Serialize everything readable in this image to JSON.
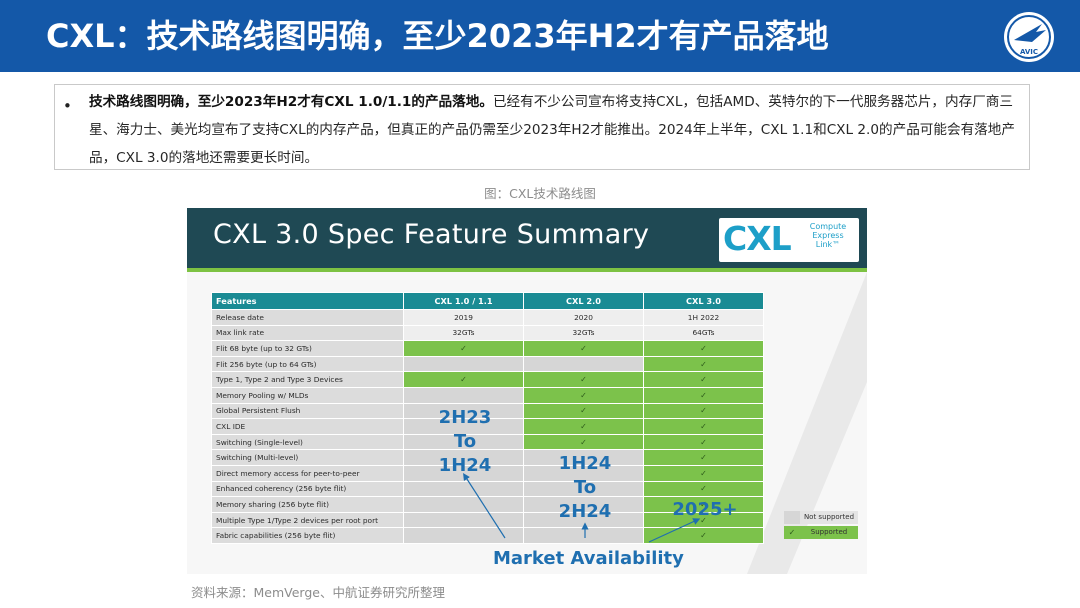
{
  "header": {
    "title": "CXL：技术路线图明确，至少2023年H2才有产品落地",
    "logo_text": "AVIC",
    "band_color": "#1458a8"
  },
  "summary": {
    "bullet": "•",
    "lead": "技术路线图明确，至少2023年H2才有CXL 1.0/1.1的产品落地。",
    "body": "已经有不少公司宣布将支持CXL，包括AMD、英特尔的下一代服务器芯片，内存厂商三星、海力士、美光均宣布了支持CXL的内存产品，但真正的产品仍需至少2023年H2才能推出。2024年上半年，CXL 1.1和CXL 2.0的产品可能会有落地产品，CXL 3.0的落地还需要更长时间。"
  },
  "figure_caption": "图：CXL技术路线图",
  "slide": {
    "title": "CXL 3.0 Spec Feature Summary",
    "logo_word": "CXL",
    "logo_sub": [
      "Compute",
      "Express",
      "Link™"
    ],
    "colors": {
      "header": "#1f4954",
      "supported": "#7cc24b",
      "not_supported": "#d6d6d6",
      "table_head": "#1a8b94"
    },
    "table": {
      "columns": [
        "Features",
        "CXL 1.0 / 1.1",
        "CXL 2.0",
        "CXL 3.0"
      ],
      "rows": [
        {
          "feature": "Release date",
          "cells": [
            "2019",
            "2020",
            "1H 2022"
          ]
        },
        {
          "feature": "Max link rate",
          "cells": [
            "32GTs",
            "32GTs",
            "64GTs"
          ]
        },
        {
          "feature": "Flit 68 byte (up to 32 GTs)",
          "cells": [
            "✓",
            "✓",
            "✓"
          ]
        },
        {
          "feature": "Flit 256 byte (up to 64 GTs)",
          "cells": [
            "",
            "",
            "✓"
          ]
        },
        {
          "feature": "Type 1, Type 2 and Type 3 Devices",
          "cells": [
            "✓",
            "✓",
            "✓"
          ]
        },
        {
          "feature": "Memory Pooling w/ MLDs",
          "cells": [
            "",
            "✓",
            "✓"
          ]
        },
        {
          "feature": "Global Persistent Flush",
          "cells": [
            "",
            "✓",
            "✓"
          ]
        },
        {
          "feature": "CXL IDE",
          "cells": [
            "",
            "✓",
            "✓"
          ]
        },
        {
          "feature": "Switching (Single-level)",
          "cells": [
            "",
            "✓",
            "✓"
          ]
        },
        {
          "feature": "Switching (Multi-level)",
          "cells": [
            "",
            "",
            "✓"
          ]
        },
        {
          "feature": "Direct memory access for peer-to-peer",
          "cells": [
            "",
            "",
            "✓"
          ]
        },
        {
          "feature": "Enhanced coherency (256 byte flit)",
          "cells": [
            "",
            "",
            "✓"
          ]
        },
        {
          "feature": "Memory sharing (256 byte flit)",
          "cells": [
            "",
            "",
            "✓"
          ]
        },
        {
          "feature": "Multiple Type 1/Type 2 devices per root port",
          "cells": [
            "",
            "",
            "✓"
          ]
        },
        {
          "feature": "Fabric capabilities (256 byte flit)",
          "cells": [
            "",
            "",
            "✓"
          ]
        }
      ]
    },
    "availability": {
      "cxl1": [
        "2H23",
        "To",
        "1H24"
      ],
      "cxl2": [
        "1H24",
        "To",
        "2H24"
      ],
      "cxl3": [
        "2025+"
      ],
      "label": "Market Availability"
    },
    "legend": {
      "not_supported": "Not supported",
      "supported": "Supported",
      "check": "✓"
    }
  },
  "source": "资料来源：MemVerge、中航证券研究所整理"
}
